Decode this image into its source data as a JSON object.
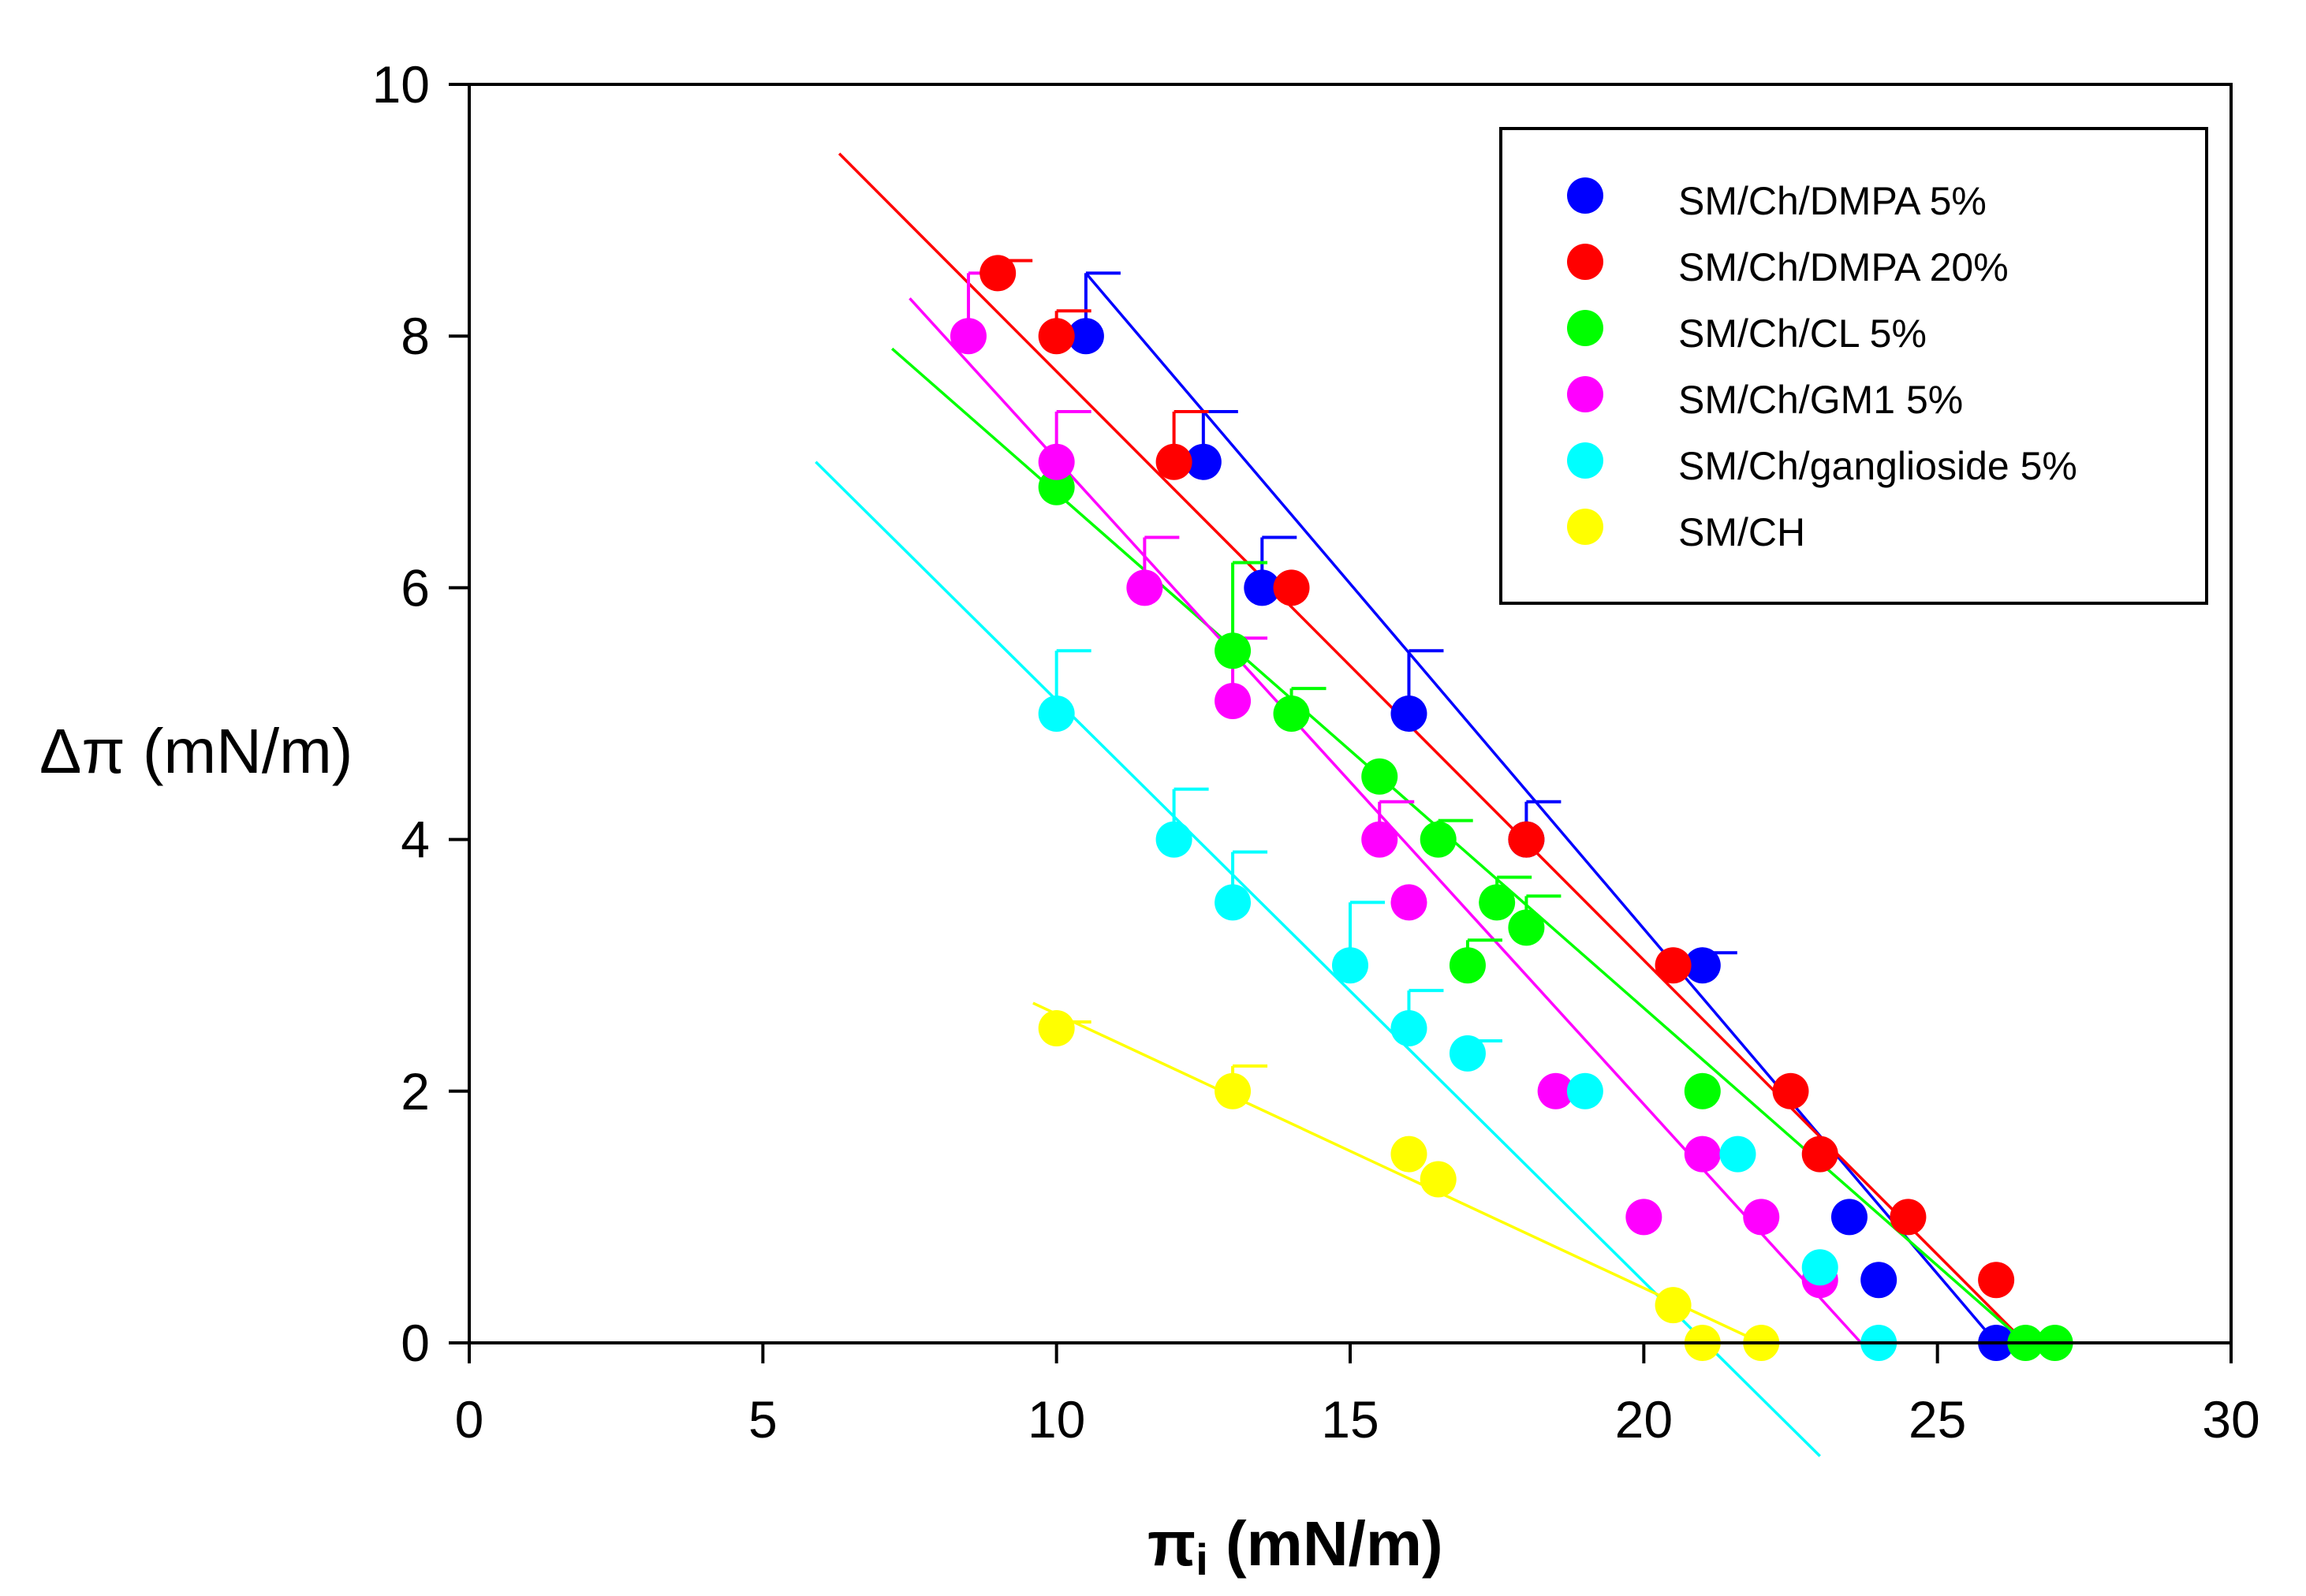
{
  "chart_data": {
    "type": "scatter",
    "title": "",
    "xlabel": "πi (mN/m)",
    "xlabel_main": "π",
    "xlabel_sub": "i",
    "xlabel_rest": " (mN/m)",
    "ylabel": "Δπ (mN/m)",
    "xlim": [
      0,
      30
    ],
    "ylim": [
      0,
      10
    ],
    "xticks": [
      0,
      5,
      10,
      15,
      20,
      25,
      30
    ],
    "yticks": [
      0,
      2,
      4,
      6,
      8,
      10
    ],
    "xtick_labels": [
      "0",
      "5",
      "10",
      "15",
      "20",
      "25",
      "30"
    ],
    "ytick_labels": [
      "0",
      "2",
      "4",
      "6",
      "8",
      "10"
    ],
    "grid": false,
    "legend_position": "top-right",
    "series": [
      {
        "name": "SM/Ch/DMPA 5%",
        "color": "#0000FF",
        "points": [
          {
            "x": 10.5,
            "y": 8.0,
            "err": 0.5
          },
          {
            "x": 12.5,
            "y": 7.0,
            "err": 0.4
          },
          {
            "x": 13.5,
            "y": 6.0,
            "err": 0.4
          },
          {
            "x": 16.0,
            "y": 5.0,
            "err": 0.5
          },
          {
            "x": 18.0,
            "y": 4.0,
            "err": 0.3
          },
          {
            "x": 21.0,
            "y": 3.0,
            "err": 0.1
          },
          {
            "x": 23.5,
            "y": 1.0,
            "err": 0
          },
          {
            "x": 24.0,
            "y": 0.5,
            "err": 0
          },
          {
            "x": 26.0,
            "y": 0.0,
            "err": 0
          }
        ],
        "fit": {
          "x": [
            10.5,
            26.0
          ],
          "y": [
            8.5,
            0.0
          ]
        }
      },
      {
        "name": "SM/Ch/DMPA 20%",
        "color": "#FF0000",
        "points": [
          {
            "x": 9.0,
            "y": 8.5,
            "err": 0.1
          },
          {
            "x": 10.0,
            "y": 8.0,
            "err": 0.2
          },
          {
            "x": 12.0,
            "y": 7.0,
            "err": 0.4
          },
          {
            "x": 14.0,
            "y": 6.0,
            "err": 0
          },
          {
            "x": 18.0,
            "y": 4.0,
            "err": 0
          },
          {
            "x": 20.5,
            "y": 3.0,
            "err": 0
          },
          {
            "x": 22.5,
            "y": 2.0,
            "err": 0
          },
          {
            "x": 23.0,
            "y": 1.5,
            "err": 0
          },
          {
            "x": 24.5,
            "y": 1.0,
            "err": 0
          },
          {
            "x": 26.0,
            "y": 0.5,
            "err": 0
          }
        ],
        "fit": {
          "x": [
            6.3,
            26.5
          ],
          "y": [
            9.45,
            0.0
          ]
        }
      },
      {
        "name": "SM/Ch/CL 5%",
        "color": "#00FF00",
        "points": [
          {
            "x": 10.0,
            "y": 6.8,
            "err": 0
          },
          {
            "x": 13.0,
            "y": 5.5,
            "err": 0.7
          },
          {
            "x": 14.0,
            "y": 5.0,
            "err": 0.2
          },
          {
            "x": 15.5,
            "y": 4.5,
            "err": 0
          },
          {
            "x": 16.5,
            "y": 4.0,
            "err": 0.15
          },
          {
            "x": 17.5,
            "y": 3.5,
            "err": 0.2
          },
          {
            "x": 18.0,
            "y": 3.3,
            "err": 0.25
          },
          {
            "x": 17.0,
            "y": 3.0,
            "err": 0.2
          },
          {
            "x": 21.0,
            "y": 2.0,
            "err": 0
          },
          {
            "x": 26.5,
            "y": 0.0,
            "err": 0
          },
          {
            "x": 27.0,
            "y": 0.0,
            "err": 0
          }
        ],
        "fit": {
          "x": [
            7.2,
            26.5
          ],
          "y": [
            7.9,
            0.0
          ]
        }
      },
      {
        "name": "SM/Ch/GM1 5%",
        "color": "#FF00FF",
        "points": [
          {
            "x": 8.5,
            "y": 8.0,
            "err": 0.5
          },
          {
            "x": 10.0,
            "y": 7.0,
            "err": 0.4
          },
          {
            "x": 11.5,
            "y": 6.0,
            "err": 0.4
          },
          {
            "x": 13.0,
            "y": 5.1,
            "err": 0.5
          },
          {
            "x": 15.5,
            "y": 4.0,
            "err": 0.3
          },
          {
            "x": 16.0,
            "y": 3.5,
            "err": 0
          },
          {
            "x": 18.5,
            "y": 2.0,
            "err": 0
          },
          {
            "x": 21.0,
            "y": 1.5,
            "err": 0
          },
          {
            "x": 20.0,
            "y": 1.0,
            "err": 0
          },
          {
            "x": 22.0,
            "y": 1.0,
            "err": 0
          },
          {
            "x": 23.0,
            "y": 0.5,
            "err": 0
          }
        ],
        "fit": {
          "x": [
            7.5,
            23.7
          ],
          "y": [
            8.3,
            0.0
          ]
        }
      },
      {
        "name": "SM/Ch/ganglioside 5%",
        "color": "#00FFFF",
        "points": [
          {
            "x": 10.0,
            "y": 5.0,
            "err": 0.5
          },
          {
            "x": 12.0,
            "y": 4.0,
            "err": 0.4
          },
          {
            "x": 13.0,
            "y": 3.5,
            "err": 0.4
          },
          {
            "x": 15.0,
            "y": 3.0,
            "err": 0.5
          },
          {
            "x": 16.0,
            "y": 2.5,
            "err": 0.3
          },
          {
            "x": 17.0,
            "y": 2.3,
            "err": 0.1
          },
          {
            "x": 19.0,
            "y": 2.0,
            "err": 0
          },
          {
            "x": 21.6,
            "y": 1.5,
            "err": 0
          },
          {
            "x": 23.0,
            "y": 0.6,
            "err": 0
          },
          {
            "x": 24.0,
            "y": 0.0,
            "err": 0
          }
        ],
        "fit": {
          "x": [
            5.9,
            23.0
          ],
          "y": [
            7.0,
            -0.9
          ]
        }
      },
      {
        "name": "SM/CH",
        "color": "#FFFF00",
        "points": [
          {
            "x": 10.0,
            "y": 2.5,
            "err": 0.05
          },
          {
            "x": 13.0,
            "y": 2.0,
            "err": 0.2
          },
          {
            "x": 16.0,
            "y": 1.5,
            "err": 0
          },
          {
            "x": 16.5,
            "y": 1.3,
            "err": 0
          },
          {
            "x": 20.5,
            "y": 0.3,
            "err": 0
          },
          {
            "x": 21.0,
            "y": 0.0,
            "err": 0
          },
          {
            "x": 22.0,
            "y": 0.0,
            "err": 0
          }
        ],
        "fit": {
          "x": [
            9.6,
            22.0
          ],
          "y": [
            2.7,
            0.0
          ]
        }
      }
    ]
  }
}
